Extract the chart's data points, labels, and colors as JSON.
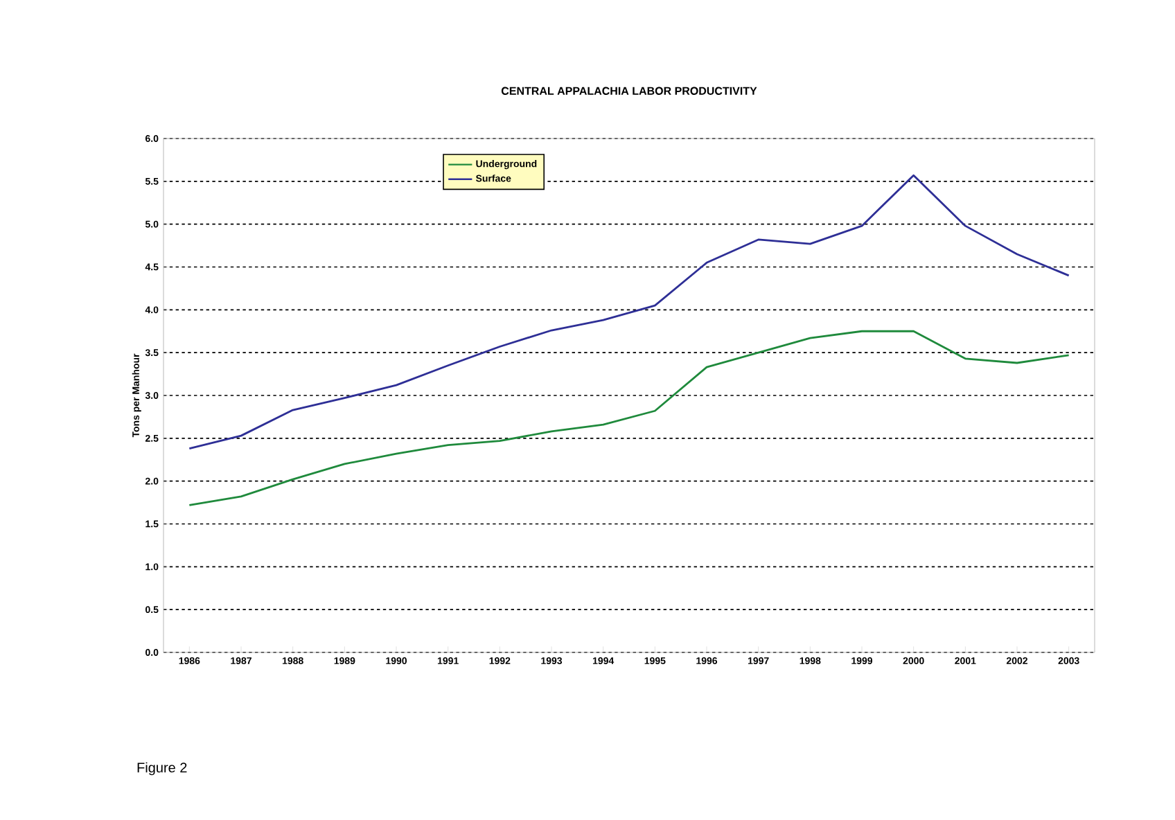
{
  "chart_data": {
    "type": "line",
    "title": "CENTRAL APPALACHIA LABOR PRODUCTIVITY",
    "ylabel": "Tons per Manhour",
    "categories": [
      "1986",
      "1987",
      "1988",
      "1989",
      "1990",
      "1991",
      "1992",
      "1993",
      "1994",
      "1995",
      "1996",
      "1997",
      "1998",
      "1999",
      "2000",
      "2001",
      "2002",
      "2003"
    ],
    "series": [
      {
        "name": "Underground",
        "color": "#1f8a3c",
        "values": [
          1.72,
          1.82,
          2.02,
          2.2,
          2.32,
          2.42,
          2.47,
          2.58,
          2.66,
          2.82,
          3.33,
          3.5,
          3.67,
          3.75,
          3.75,
          3.43,
          3.38,
          3.47
        ]
      },
      {
        "name": "Surface",
        "color": "#2e2f96",
        "values": [
          2.38,
          2.53,
          2.83,
          2.97,
          3.12,
          3.35,
          3.57,
          3.76,
          3.88,
          4.05,
          4.55,
          4.82,
          4.77,
          4.98,
          5.57,
          4.98,
          4.65,
          4.4
        ]
      }
    ],
    "ylim": [
      0,
      6
    ],
    "yticks": [
      {
        "value": 0,
        "label": "0.0"
      },
      {
        "value": 0.5,
        "label": "0.5"
      },
      {
        "value": 1,
        "label": "1.0"
      },
      {
        "value": 1.5,
        "label": "1.5"
      },
      {
        "value": 2,
        "label": "2.0"
      },
      {
        "value": 2.5,
        "label": "2.5"
      },
      {
        "value": 3,
        "label": "3.0"
      },
      {
        "value": 3.5,
        "label": "3.5"
      },
      {
        "value": 4,
        "label": "4.0"
      },
      {
        "value": 4.5,
        "label": "4.5"
      },
      {
        "value": 5,
        "label": "5.0"
      },
      {
        "value": 5.5,
        "label": "5.5"
      },
      {
        "value": 6,
        "label": "6.0"
      }
    ],
    "grid": "y",
    "legend": "top left",
    "marker": "none",
    "line_style": "solid",
    "annotations": [
      "Figure 2"
    ]
  }
}
